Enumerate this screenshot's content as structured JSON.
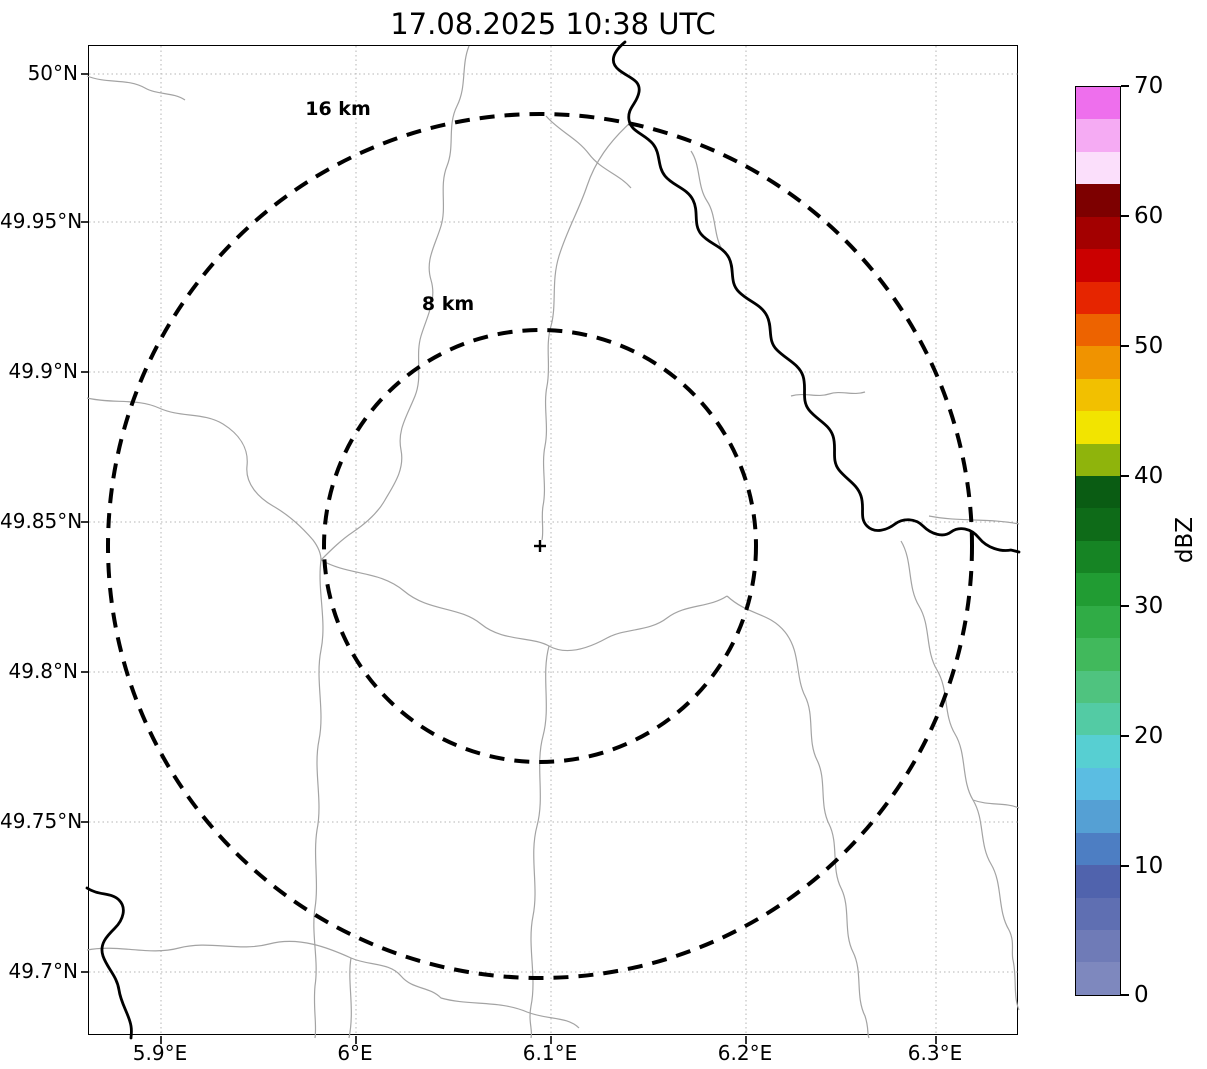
{
  "figure": {
    "title": "17.08.2025 10:38 UTC"
  },
  "axes": {
    "x_tick_labels": [
      "5.9°E",
      "6°E",
      "6.1°E",
      "6.2°E",
      "6.3°E"
    ],
    "y_tick_labels": [
      "50°N",
      "49.95°N",
      "49.9°N",
      "49.85°N",
      "49.8°N",
      "49.75°N",
      "49.7°N"
    ]
  },
  "range_rings": [
    {
      "label": "16 km",
      "radius_km": 16
    },
    {
      "label": "8 km",
      "radius_km": 8
    }
  ],
  "colorbar": {
    "unit_label": "dBZ",
    "tick_labels_top_to_bottom": [
      "70",
      "60",
      "50",
      "40",
      "30",
      "20",
      "10",
      "0"
    ],
    "min_dbz": 0,
    "max_dbz": 70,
    "step_dbz": 2.5,
    "colors_bottom_to_top": [
      "#7e88be",
      "#6f7bb7",
      "#5f6fb2",
      "#5063ad",
      "#4d7ec3",
      "#55a0d4",
      "#5bbde2",
      "#57cfd2",
      "#53cba4",
      "#4fc37f",
      "#41b95c",
      "#30ac46",
      "#219c33",
      "#168424",
      "#0e6b18",
      "#0a5c13",
      "#8fb40c",
      "#f2e400",
      "#f2c000",
      "#f09300",
      "#ed6300",
      "#e62500",
      "#cb0000",
      "#a30000",
      "#7d0000",
      "#fbdffb",
      "#f5abf3",
      "#ee6fed"
    ]
  },
  "chart_data": {
    "type": "heatmap",
    "subtype": "weather-radar-reflectivity-map",
    "title": "17.08.2025 10:38 UTC",
    "xlabel": "",
    "ylabel": "",
    "x_tick_labels": [
      "5.9°E",
      "6°E",
      "6.1°E",
      "6.2°E",
      "6.3°E"
    ],
    "y_tick_labels": [
      "50°N",
      "49.95°N",
      "49.9°N",
      "49.85°N",
      "49.8°N",
      "49.75°N",
      "49.7°N"
    ],
    "xlim_deg_e": [
      5.863,
      6.343
    ],
    "ylim_deg_n": [
      49.68,
      50.01
    ],
    "grid": true,
    "grid_style": "dotted",
    "values": [],
    "echoes_visible": false,
    "colorbar": {
      "label": "dBZ",
      "range": [
        0,
        70
      ],
      "ticks": [
        0,
        10,
        20,
        30,
        40,
        50,
        60,
        70
      ],
      "position": "right",
      "discrete_step": 2.5
    },
    "annotations": [
      {
        "text": "16 km",
        "type": "range-ring",
        "radius_km": 16,
        "line_style": "dashed"
      },
      {
        "text": "8 km",
        "type": "range-ring",
        "radius_km": 8,
        "line_style": "dashed"
      }
    ],
    "center_marker": {
      "symbol": "+",
      "lon_deg_e": 6.095,
      "lat_deg_n": 49.843
    },
    "basemap_features": [
      "administrative-boundaries-thin-gray",
      "river-thick-black"
    ]
  }
}
